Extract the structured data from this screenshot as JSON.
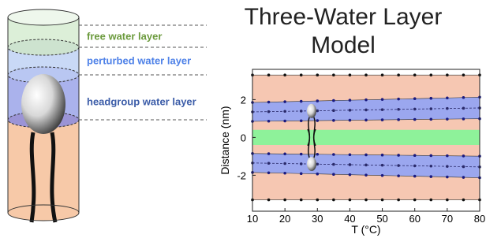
{
  "diagram": {
    "labels": [
      {
        "text": "free water layer",
        "color": "#6b9a3c"
      },
      {
        "text": "perturbed water layer",
        "color": "#4f82e8"
      },
      {
        "text": "headgroup water layer",
        "color": "#3b5ca8"
      }
    ]
  },
  "chart_data": {
    "type": "band",
    "title": "Three-Water Layer Model",
    "x_label": "T (°C)",
    "y_label": "Distance (nm)",
    "x": [
      10,
      15,
      20,
      25,
      30,
      35,
      40,
      45,
      50,
      55,
      60,
      65,
      70,
      75,
      80
    ],
    "xlim": [
      10,
      80
    ],
    "xticks": [
      10,
      20,
      30,
      40,
      50,
      60,
      70,
      80
    ],
    "ylim": [
      -3.9,
      3.6
    ],
    "yticks": [
      -2,
      0,
      2
    ],
    "bands": [
      {
        "color": "#f6c7b2",
        "markers": true,
        "lower": [
          -3.3,
          -3.3,
          -3.3,
          -3.3,
          -3.3,
          -3.3,
          -3.3,
          -3.3,
          -3.3,
          -3.3,
          -3.3,
          -3.3,
          -3.3,
          -3.3,
          -3.3
        ],
        "upper": [
          3.3,
          3.3,
          3.3,
          3.3,
          3.3,
          3.3,
          3.3,
          3.3,
          3.3,
          3.3,
          3.3,
          3.3,
          3.3,
          3.3,
          3.3
        ]
      },
      {
        "color": "#9ba7ef",
        "markers": true,
        "lower": [
          0.85,
          0.86,
          0.87,
          0.88,
          0.89,
          0.9,
          0.91,
          0.92,
          0.93,
          0.94,
          0.95,
          0.96,
          0.97,
          0.98,
          0.99
        ],
        "upper": [
          1.85,
          1.87,
          1.89,
          1.91,
          1.93,
          1.95,
          1.97,
          1.99,
          2.01,
          2.03,
          2.05,
          2.07,
          2.09,
          2.11,
          2.13
        ]
      },
      {
        "color": "#9ba7ef",
        "markers": true,
        "lower": [
          -1.85,
          -1.87,
          -1.89,
          -1.91,
          -1.93,
          -1.95,
          -1.97,
          -1.99,
          -2.01,
          -2.03,
          -2.05,
          -2.07,
          -2.09,
          -2.11,
          -2.13
        ],
        "upper": [
          -0.85,
          -0.86,
          -0.87,
          -0.88,
          -0.89,
          -0.9,
          -0.91,
          -0.92,
          -0.93,
          -0.94,
          -0.95,
          -0.96,
          -0.97,
          -0.98,
          -0.99
        ]
      },
      {
        "color": "#8ef29a",
        "markers": false,
        "lower": [
          -0.4,
          -0.4,
          -0.4,
          -0.4,
          -0.4,
          -0.4,
          -0.4,
          -0.4,
          -0.4,
          -0.4,
          -0.4,
          -0.4,
          -0.4,
          -0.4,
          -0.4
        ],
        "upper": [
          0.4,
          0.4,
          0.4,
          0.4,
          0.4,
          0.4,
          0.4,
          0.4,
          0.4,
          0.4,
          0.4,
          0.4,
          0.4,
          0.4,
          0.4
        ]
      }
    ],
    "series": [
      {
        "color": "#2a2a6a",
        "values": [
          1.35,
          1.365,
          1.38,
          1.395,
          1.41,
          1.425,
          1.44,
          1.455,
          1.47,
          1.485,
          1.5,
          1.515,
          1.53,
          1.545,
          1.56
        ]
      },
      {
        "color": "#2a2a6a",
        "values": [
          -1.35,
          -1.365,
          -1.38,
          -1.395,
          -1.41,
          -1.425,
          -1.44,
          -1.455,
          -1.47,
          -1.485,
          -1.5,
          -1.515,
          -1.53,
          -1.545,
          -1.56
        ]
      }
    ]
  }
}
